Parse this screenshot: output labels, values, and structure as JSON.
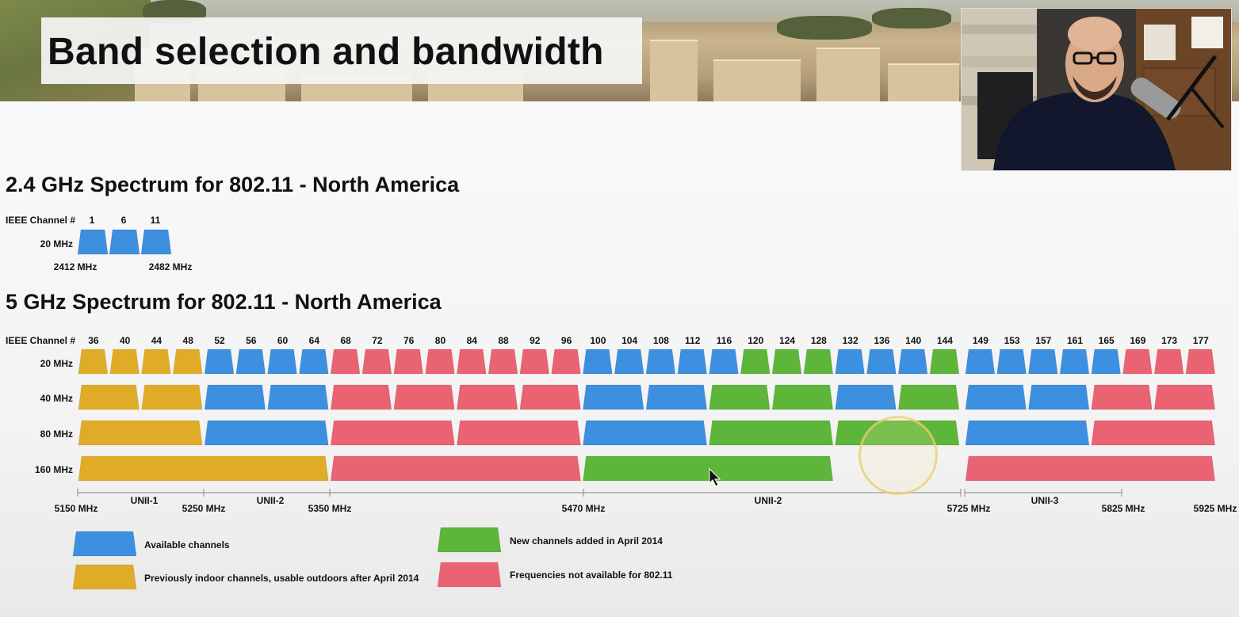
{
  "title": "Band selection and bandwidth",
  "colors": {
    "available": "#3d8fe0",
    "indoor": "#e0ac28",
    "new2014": "#5db53a",
    "unavailable": "#ea6373"
  },
  "spectrum24": {
    "heading": "2.4 GHz Spectrum for 802.11 - North America",
    "ieee_label": "IEEE Channel #",
    "row_label": "20 MHz",
    "channels": [
      "1",
      "6",
      "11"
    ],
    "freq_low": "2412 MHz",
    "freq_high": "2482 MHz"
  },
  "spectrum5": {
    "heading": "5 GHz Spectrum for 802.11 - North America",
    "ieee_label": "IEEE Channel #",
    "row_labels": [
      "20 MHz",
      "40 MHz",
      "80 MHz",
      "160 MHz"
    ],
    "channels": [
      "36",
      "40",
      "44",
      "48",
      "52",
      "56",
      "60",
      "64",
      "68",
      "72",
      "76",
      "80",
      "84",
      "88",
      "92",
      "96",
      "100",
      "104",
      "108",
      "112",
      "116",
      "120",
      "124",
      "128",
      "132",
      "136",
      "140",
      "144",
      "149",
      "153",
      "157",
      "161",
      "165",
      "169",
      "173",
      "177"
    ],
    "rows": {
      "20": [
        "indoor",
        "indoor",
        "indoor",
        "indoor",
        "available",
        "available",
        "available",
        "available",
        "unavailable",
        "unavailable",
        "unavailable",
        "unavailable",
        "unavailable",
        "unavailable",
        "unavailable",
        "unavailable",
        "available",
        "available",
        "available",
        "available",
        "available",
        "new2014",
        "new2014",
        "new2014",
        "available",
        "available",
        "available",
        "new2014",
        "available",
        "available",
        "available",
        "available",
        "available",
        "unavailable",
        "unavailable",
        "unavailable"
      ],
      "40": [
        "indoor",
        "indoor",
        "available",
        "available",
        "unavailable",
        "unavailable",
        "unavailable",
        "unavailable",
        "available",
        "available",
        "new2014",
        "new2014",
        "available",
        "new2014",
        "available",
        "available",
        "unavailable",
        "unavailable"
      ],
      "80": [
        "indoor",
        "available",
        "unavailable",
        "unavailable",
        "available",
        "new2014",
        "new2014",
        "available",
        "unavailable"
      ],
      "160": [
        "indoor",
        "unavailable",
        "new2014",
        "",
        "unavailable"
      ]
    },
    "freqs": [
      "5150 MHz",
      "5250 MHz",
      "5350 MHz",
      "5470 MHz",
      "5725 MHz",
      "5825 MHz",
      "5925 MHz"
    ],
    "bands": [
      "UNII-1",
      "UNII-2",
      "UNII-2",
      "UNII-3"
    ]
  },
  "legend": {
    "available": "Available channels",
    "indoor": "Previously indoor channels, usable outdoors after April 2014",
    "new2014": "New channels added in April 2014",
    "unavailable": "Frequencies not available for 802.11"
  }
}
